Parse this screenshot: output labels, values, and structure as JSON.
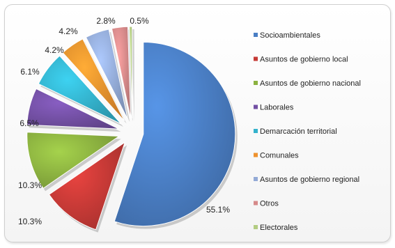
{
  "chart_data": {
    "type": "pie",
    "categories": [
      "Socioambientales",
      "Asuntos de gobierno local",
      "Asuntos de gobierno nacional",
      "Laborales",
      "Demarcación territorial",
      "Comunales",
      "Asuntos de gobierno regional",
      "Otros",
      "Electorales"
    ],
    "values": [
      55.1,
      10.3,
      10.3,
      6.5,
      6.1,
      4.2,
      4.2,
      2.8,
      0.5
    ],
    "labels": [
      "55.1%",
      "10.3%",
      "10.3%",
      "6.5%",
      "6.1%",
      "4.2%",
      "4.2%",
      "2.8%",
      "0.5%"
    ],
    "colors": [
      "#4a7ec4",
      "#c63a36",
      "#8cb240",
      "#7350a4",
      "#34b2cc",
      "#ee922e",
      "#93aad6",
      "#d68a8a",
      "#b3cc82"
    ],
    "exploded": true,
    "legend_position": "right"
  }
}
